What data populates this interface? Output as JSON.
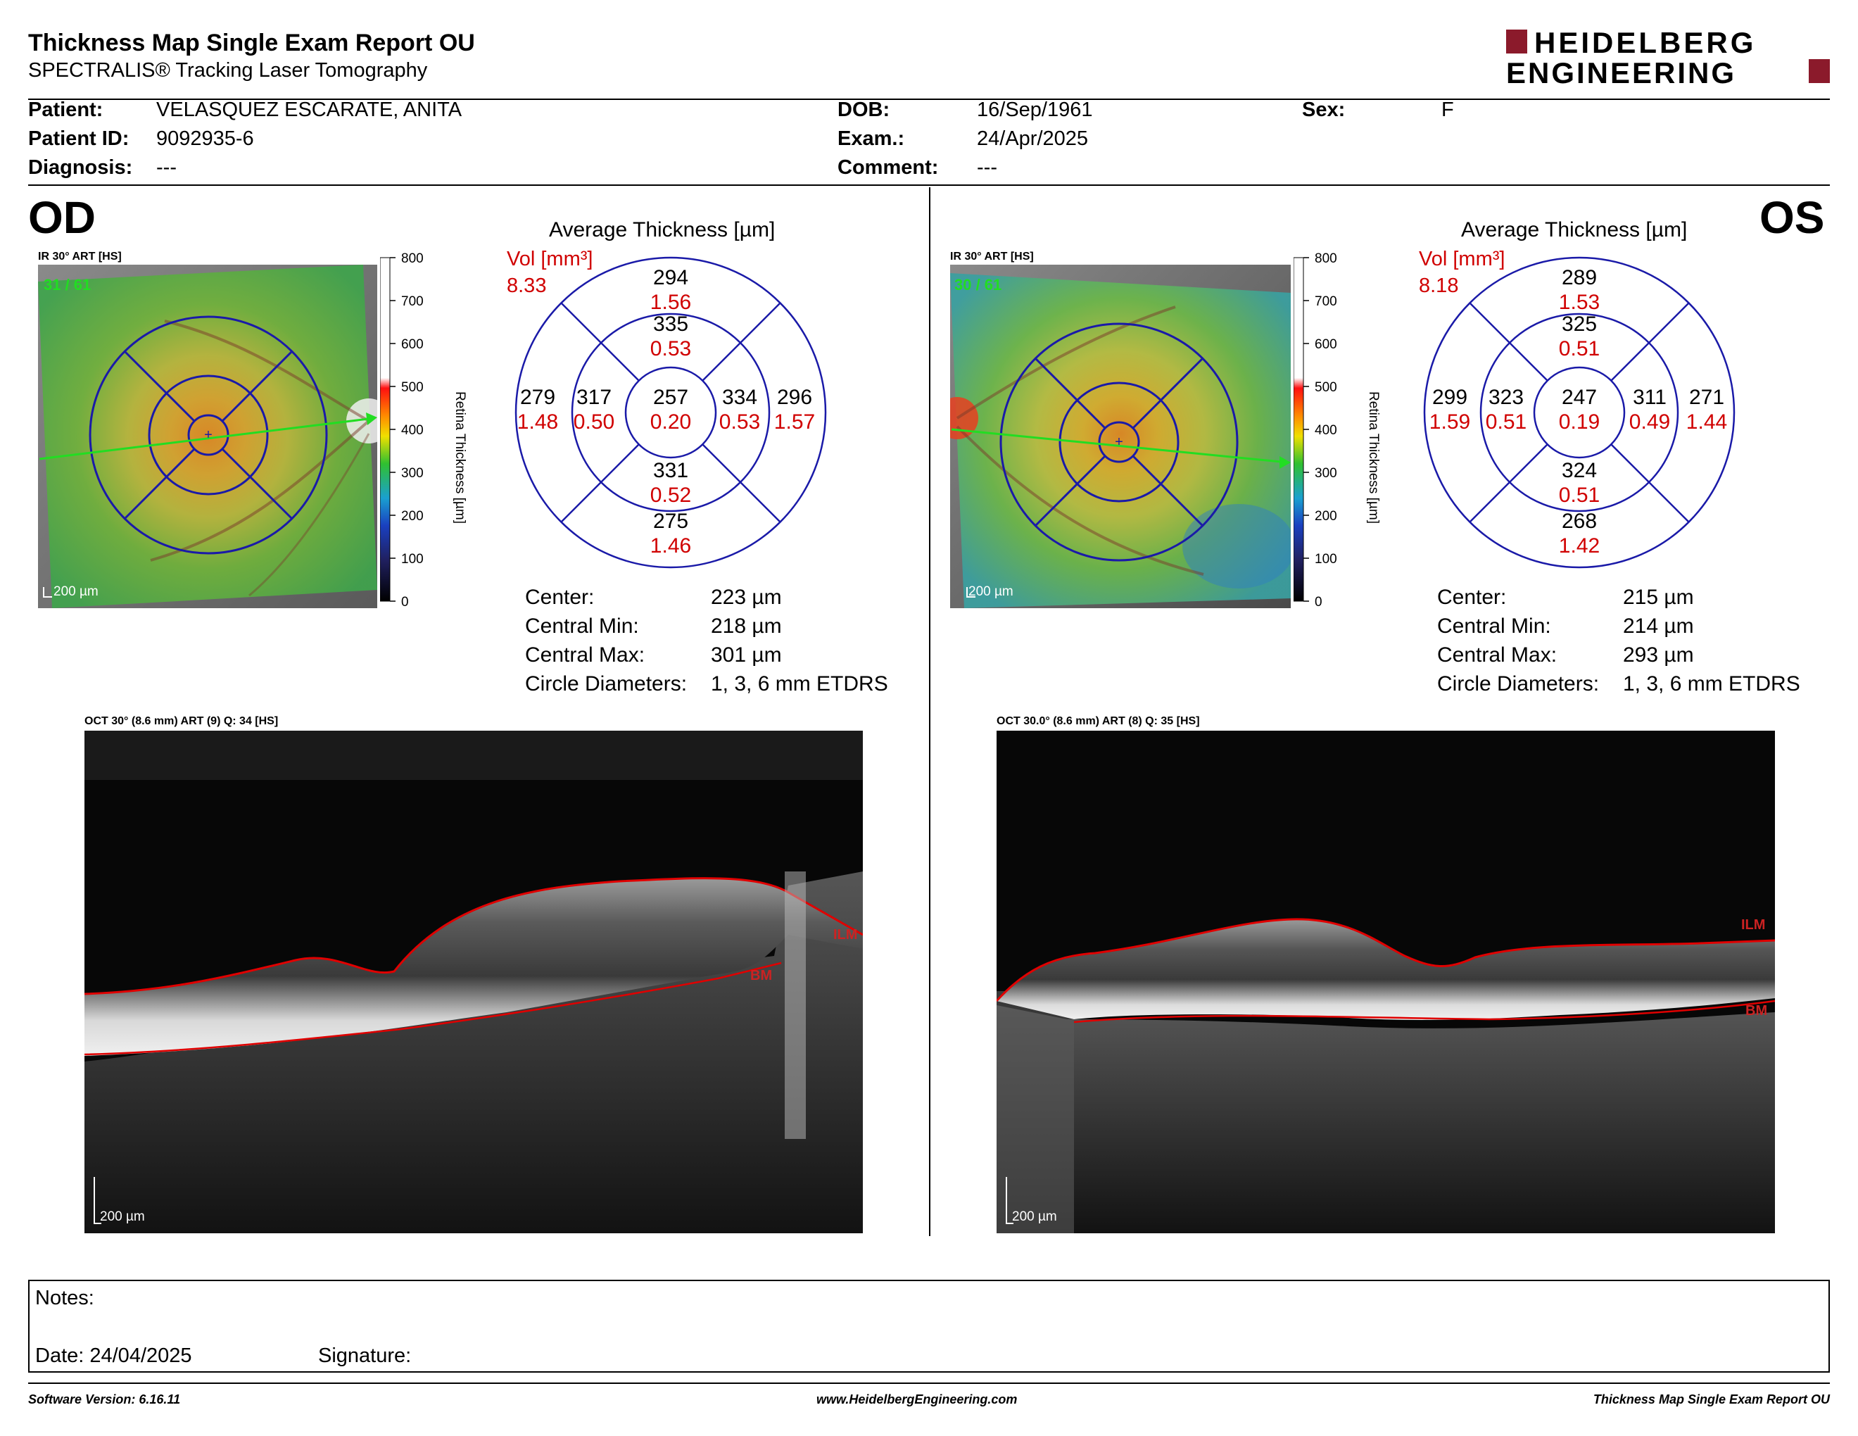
{
  "header": {
    "title": "Thickness Map Single Exam Report OU",
    "subtitle": "SPECTRALIS® Tracking Laser Tomography",
    "brand_line1": "HEIDELBERG",
    "brand_line2": "ENGINEERING",
    "brand_color": "#8b1a2b"
  },
  "patient": {
    "patient_label": "Patient:",
    "patient_value": "VELASQUEZ ESCARATE, ANITA",
    "id_label": "Patient ID:",
    "id_value": "9092935-6",
    "diagnosis_label": "Diagnosis:",
    "diagnosis_value": "---",
    "dob_label": "DOB:",
    "dob_value": "16/Sep/1961",
    "exam_label": "Exam.:",
    "exam_value": "24/Apr/2025",
    "comment_label": "Comment:",
    "comment_value": "---",
    "sex_label": "Sex:",
    "sex_value": "F"
  },
  "od": {
    "eye": "OD",
    "image_label": "IR 30° ART [HS]",
    "frame_count": "31 / 61",
    "scale_label": "200 µm",
    "avg_title": "Average Thickness [µm]",
    "vol_label": "Vol [mm³]",
    "vol_total": "8.33",
    "sectors": {
      "sup_outer": {
        "t": "294",
        "v": "1.56"
      },
      "sup_inner": {
        "t": "335",
        "v": "0.53"
      },
      "center": {
        "t": "257",
        "v": "0.20"
      },
      "temp_outer": {
        "t": "279",
        "v": "1.48"
      },
      "temp_inner": {
        "t": "317",
        "v": "0.50"
      },
      "nasal_inner": {
        "t": "334",
        "v": "0.53"
      },
      "nasal_outer": {
        "t": "296",
        "v": "1.57"
      },
      "inf_inner": {
        "t": "331",
        "v": "0.52"
      },
      "inf_outer": {
        "t": "275",
        "v": "1.46"
      }
    },
    "stats": [
      {
        "label": "Center:",
        "value": "223 µm"
      },
      {
        "label": "Central Min:",
        "value": "218 µm"
      },
      {
        "label": "Central Max:",
        "value": "301 µm"
      },
      {
        "label": "Circle Diameters:",
        "value": "1, 3, 6 mm ETDRS"
      }
    ],
    "oct_label": "OCT 30° (8.6 mm) ART (9) Q: 34 [HS]",
    "oct_scale": "200 µm",
    "ilm": "ILM",
    "bm": "BM"
  },
  "os": {
    "eye": "OS",
    "image_label": "IR 30° ART [HS]",
    "frame_count": "30 / 61",
    "scale_label": "200 µm",
    "avg_title": "Average Thickness [µm]",
    "vol_label": "Vol [mm³]",
    "vol_total": "8.18",
    "sectors": {
      "sup_outer": {
        "t": "289",
        "v": "1.53"
      },
      "sup_inner": {
        "t": "325",
        "v": "0.51"
      },
      "center": {
        "t": "247",
        "v": "0.19"
      },
      "temp_outer": {
        "t": "299",
        "v": "1.59"
      },
      "temp_inner": {
        "t": "323",
        "v": "0.51"
      },
      "nasal_inner": {
        "t": "311",
        "v": "0.49"
      },
      "nasal_outer": {
        "t": "271",
        "v": "1.44"
      },
      "inf_inner": {
        "t": "324",
        "v": "0.51"
      },
      "inf_outer": {
        "t": "268",
        "v": "1.42"
      }
    },
    "stats": [
      {
        "label": "Center:",
        "value": "215 µm"
      },
      {
        "label": "Central Min:",
        "value": "214 µm"
      },
      {
        "label": "Central Max:",
        "value": "293 µm"
      },
      {
        "label": "Circle Diameters:",
        "value": "1, 3, 6 mm ETDRS"
      }
    ],
    "oct_label": "OCT 30.0° (8.6 mm) ART (8) Q: 35 [HS]",
    "oct_scale": "200 µm",
    "ilm": "ILM",
    "bm": "BM"
  },
  "colorbar": {
    "ticks": [
      "800",
      "700",
      "600",
      "500",
      "400",
      "300",
      "200",
      "100",
      "0"
    ],
    "axis_label": "Retina  Thickness [µm]"
  },
  "notes": {
    "notes_label": "Notes:",
    "date_label": "Date: 24/04/2025",
    "signature_label": "Signature:"
  },
  "footer": {
    "software": "Software Version: 6.16.11",
    "website": "www.HeidelbergEngineering.com",
    "report_name": "Thickness Map Single Exam Report OU"
  },
  "colors": {
    "vol_red": "#d00000",
    "grid_blue": "#1a1aa8",
    "segment_red": "#e00000",
    "arrow_green": "#22dd22"
  }
}
